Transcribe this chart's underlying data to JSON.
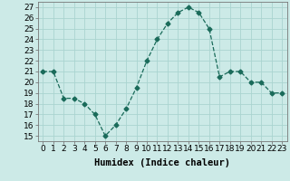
{
  "x": [
    0,
    1,
    2,
    3,
    4,
    5,
    6,
    7,
    8,
    9,
    10,
    11,
    12,
    13,
    14,
    15,
    16,
    17,
    18,
    19,
    20,
    21,
    22,
    23
  ],
  "y": [
    21,
    21,
    18.5,
    18.5,
    18,
    17,
    15,
    16,
    17.5,
    19.5,
    22,
    24,
    25.5,
    26.5,
    27,
    26.5,
    25,
    20.5,
    21,
    21,
    20,
    20,
    19,
    19
  ],
  "line_color": "#1a6b5a",
  "marker": "D",
  "marker_size": 2.5,
  "bg_color": "#cceae7",
  "grid_color": "#aad4d0",
  "xlabel": "Humidex (Indice chaleur)",
  "xlim": [
    -0.5,
    23.5
  ],
  "ylim": [
    14.5,
    27.5
  ],
  "yticks": [
    15,
    16,
    17,
    18,
    19,
    20,
    21,
    22,
    23,
    24,
    25,
    26,
    27
  ],
  "xticks": [
    0,
    1,
    2,
    3,
    4,
    5,
    6,
    7,
    8,
    9,
    10,
    11,
    12,
    13,
    14,
    15,
    16,
    17,
    18,
    19,
    20,
    21,
    22,
    23
  ],
  "label_fontsize": 7.5,
  "tick_fontsize": 6.5
}
